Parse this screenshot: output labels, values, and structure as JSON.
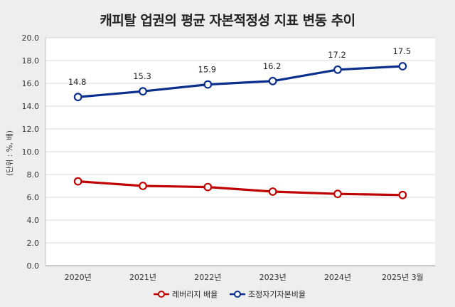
{
  "chart_data": {
    "type": "line",
    "title": "캐피탈 업권의 평균 자본적정성 지표 변동 추이",
    "ylabel": "(단위 : %, 배)",
    "xlabel": "",
    "categories": [
      "2020년",
      "2021년",
      "2022년",
      "2023년",
      "2024년",
      "2025년 3월"
    ],
    "ylim": [
      0,
      20
    ],
    "yticks": [
      "0.0",
      "2.0",
      "4.0",
      "6.0",
      "8.0",
      "10.0",
      "12.0",
      "14.0",
      "16.0",
      "18.0",
      "20.0"
    ],
    "grid": true,
    "legend_position": "bottom",
    "series": [
      {
        "name": "레버리지 배율",
        "color": "#c00000",
        "values": [
          7.4,
          7.0,
          6.9,
          6.5,
          6.3,
          6.2
        ],
        "show_labels": false
      },
      {
        "name": "조정자기자본비율",
        "color": "#0a2f8c",
        "values": [
          14.8,
          15.3,
          15.9,
          16.2,
          17.2,
          17.5
        ],
        "data_labels": [
          "14.8",
          "15.3",
          "15.9",
          "16.2",
          "17.2",
          "17.5"
        ],
        "show_labels": true
      }
    ]
  }
}
